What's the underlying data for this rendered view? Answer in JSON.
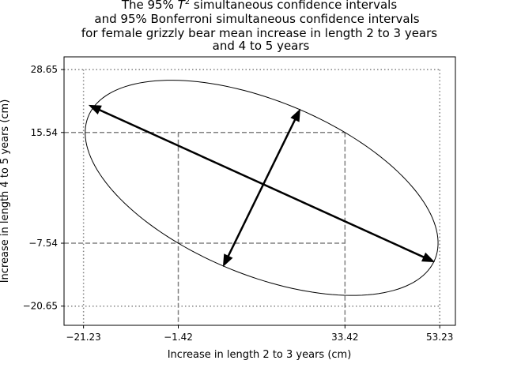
{
  "chart_data": {
    "type": "scatter",
    "title": {
      "line1_before": "The 95% ",
      "line1_symbol": "T",
      "line1_sup": "2",
      "line1_after": " simultaneous confidence intervals",
      "line2": "and 95% Bonferroni simultaneous  confidence intervals",
      "line3": "for female grizzly bear mean increase in length 2 to 3 years",
      "line4": "and 4 to 5 years"
    },
    "xlabel": "Increase in length 2 to 3 years (cm)",
    "ylabel": "Increase in length 4 to 5 years (cm)",
    "xlim": [
      -25.3,
      56.5
    ],
    "ylim": [
      -24.65,
      31.3
    ],
    "x_ticks": [
      -21.23,
      -1.42,
      33.42,
      53.23
    ],
    "x_tick_labels": [
      "−21.23",
      "−1.42",
      "33.42",
      "53.23"
    ],
    "y_ticks": [
      28.65,
      15.54,
      -7.54,
      -20.65
    ],
    "y_tick_labels": [
      "28.65",
      "15.54",
      "−7.54",
      "−20.65"
    ],
    "grid": false,
    "t2_intervals": {
      "x": [
        -21.23,
        53.23
      ],
      "y": [
        -20.65,
        28.65
      ],
      "style": "dotted",
      "color": "#808080"
    },
    "bonferroni_intervals": {
      "x": [
        -1.42,
        33.42
      ],
      "y": [
        -7.54,
        15.54
      ],
      "style": "dashed",
      "color": "#808080"
    },
    "ellipse": {
      "center": [
        16.0,
        4.0
      ],
      "major_axis": {
        "from": [
          16.0,
          4.0
        ],
        "to": [
          52.0,
          -11.4
        ]
      },
      "minor_axis": {
        "from": [
          16.0,
          4.0
        ],
        "to": [
          24.0,
          20.3
        ]
      },
      "color": "#000000"
    },
    "arrows": [
      {
        "from": [
          -20.0,
          21.2
        ],
        "to": [
          52.0,
          -11.4
        ]
      },
      {
        "from": [
          24.0,
          20.3
        ],
        "to": [
          8.0,
          -12.3
        ]
      }
    ]
  }
}
